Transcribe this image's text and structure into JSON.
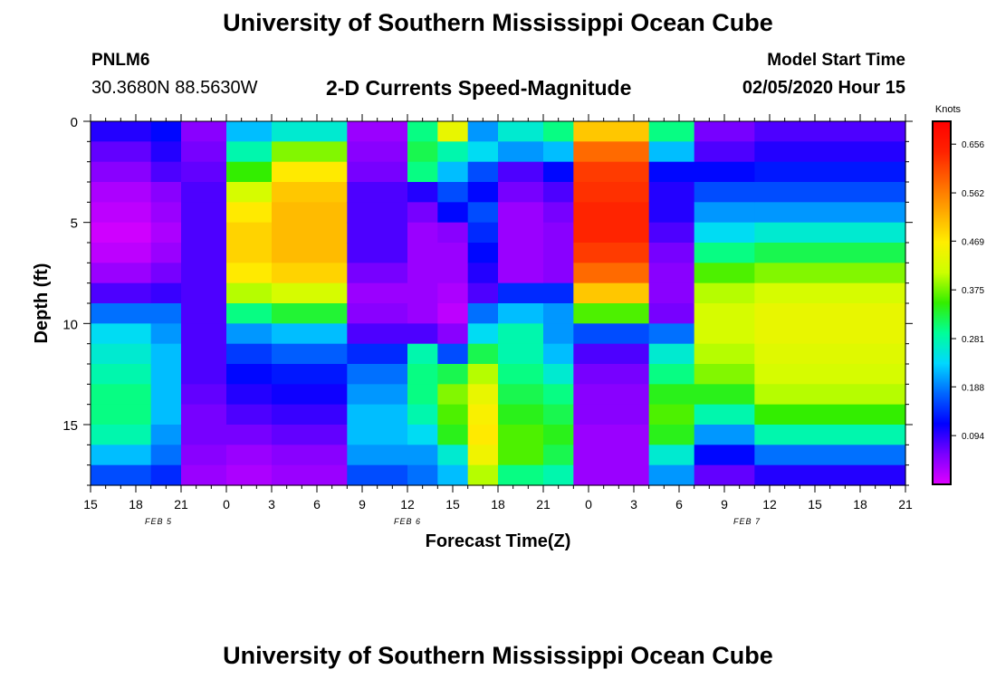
{
  "header": {
    "title": "University of Southern Mississippi Ocean Cube",
    "station": "PNLM6",
    "coordinates": "30.3680N 88.5630W",
    "subtitle": "2-D Currents Speed-Magnitude",
    "model_start_label": "Model Start Time",
    "model_start_value": "02/05/2020 Hour 15"
  },
  "footer": {
    "title": "University of Southern Mississippi Ocean Cube"
  },
  "chart_data": {
    "type": "heatmap",
    "title": "2-D Currents Speed-Magnitude",
    "xlabel": "Forecast Time(Z)",
    "ylabel": "Depth (ft)",
    "x_tick_labels": [
      "15",
      "18",
      "21",
      "0",
      "3",
      "6",
      "9",
      "12",
      "15",
      "18",
      "21",
      "0",
      "3",
      "6",
      "9",
      "12",
      "15",
      "18",
      "21"
    ],
    "x_range_hours": [
      0,
      54
    ],
    "date_labels": [
      {
        "label": "FEB 5",
        "hour": 4.5
      },
      {
        "label": "FEB 6",
        "hour": 21
      },
      {
        "label": "FEB 7",
        "hour": 43.5
      }
    ],
    "y_ticks": [
      0,
      5,
      10,
      15
    ],
    "y_range": [
      0,
      18
    ],
    "y_inverted": true,
    "colorbar": {
      "label": "Knots",
      "ticks": [
        0.656,
        0.562,
        0.469,
        0.375,
        0.281,
        0.188,
        0.094
      ],
      "range": [
        0,
        0.7
      ],
      "colors": [
        "#e000ff",
        "#7a00ff",
        "#0000ff",
        "#0066ff",
        "#00d8ff",
        "#00ff99",
        "#33ee00",
        "#ccff00",
        "#ffee00",
        "#ffaa00",
        "#ff6600",
        "#ff2200",
        "#ff0000"
      ]
    },
    "depths_ft": [
      0.5,
      1.5,
      2.5,
      3.5,
      4.5,
      5.5,
      6.5,
      7.5,
      8.5,
      9.5,
      10.5,
      11.5,
      12.5,
      13.5,
      14.5,
      15.5,
      16.5,
      17.5
    ],
    "speed_blocks": [
      {
        "t": [
          0,
          4
        ],
        "top_to_bottom": [
          0.1,
          0.07,
          0.05,
          0.03,
          0.02,
          0.01,
          0.02,
          0.04,
          0.08,
          0.18,
          0.24,
          0.26,
          0.28,
          0.3,
          0.3,
          0.28,
          0.22,
          0.16
        ]
      },
      {
        "t": [
          4,
          6
        ],
        "top_to_bottom": [
          0.12,
          0.1,
          0.08,
          0.05,
          0.04,
          0.03,
          0.04,
          0.06,
          0.09,
          0.18,
          0.2,
          0.22,
          0.22,
          0.22,
          0.22,
          0.2,
          0.18,
          0.14
        ]
      },
      {
        "t": [
          6,
          9
        ],
        "top_to_bottom": [
          0.05,
          0.06,
          0.07,
          0.08,
          0.08,
          0.08,
          0.08,
          0.08,
          0.08,
          0.08,
          0.08,
          0.08,
          0.08,
          0.07,
          0.06,
          0.06,
          0.05,
          0.04
        ]
      },
      {
        "t": [
          9,
          12
        ],
        "top_to_bottom": [
          0.22,
          0.28,
          0.35,
          0.42,
          0.47,
          0.49,
          0.49,
          0.47,
          0.4,
          0.3,
          0.2,
          0.15,
          0.12,
          0.1,
          0.08,
          0.06,
          0.04,
          0.03
        ]
      },
      {
        "t": [
          12,
          17
        ],
        "top_to_bottom": [
          0.26,
          0.38,
          0.47,
          0.5,
          0.51,
          0.51,
          0.51,
          0.49,
          0.42,
          0.33,
          0.22,
          0.17,
          0.13,
          0.11,
          0.09,
          0.07,
          0.05,
          0.04
        ]
      },
      {
        "t": [
          17,
          21
        ],
        "top_to_bottom": [
          0.04,
          0.05,
          0.06,
          0.08,
          0.08,
          0.08,
          0.08,
          0.06,
          0.04,
          0.05,
          0.08,
          0.14,
          0.18,
          0.2,
          0.22,
          0.22,
          0.2,
          0.16
        ]
      },
      {
        "t": [
          21,
          23
        ],
        "top_to_bottom": [
          0.3,
          0.32,
          0.3,
          0.1,
          0.06,
          0.04,
          0.04,
          0.04,
          0.04,
          0.04,
          0.08,
          0.28,
          0.3,
          0.3,
          0.28,
          0.24,
          0.2,
          0.18
        ]
      },
      {
        "t": [
          23,
          25
        ],
        "top_to_bottom": [
          0.44,
          0.28,
          0.22,
          0.16,
          0.12,
          0.05,
          0.04,
          0.04,
          0.03,
          0.02,
          0.05,
          0.16,
          0.32,
          0.38,
          0.36,
          0.34,
          0.26,
          0.22
        ]
      },
      {
        "t": [
          25,
          27
        ],
        "top_to_bottom": [
          0.2,
          0.24,
          0.16,
          0.12,
          0.16,
          0.14,
          0.12,
          0.1,
          0.08,
          0.18,
          0.24,
          0.32,
          0.4,
          0.44,
          0.46,
          0.47,
          0.45,
          0.4
        ]
      },
      {
        "t": [
          27,
          30
        ],
        "top_to_bottom": [
          0.26,
          0.2,
          0.08,
          0.06,
          0.04,
          0.04,
          0.04,
          0.04,
          0.14,
          0.22,
          0.28,
          0.28,
          0.3,
          0.32,
          0.34,
          0.36,
          0.36,
          0.3
        ]
      },
      {
        "t": [
          30,
          32
        ],
        "top_to_bottom": [
          0.3,
          0.22,
          0.12,
          0.08,
          0.06,
          0.05,
          0.05,
          0.05,
          0.14,
          0.2,
          0.2,
          0.22,
          0.26,
          0.3,
          0.32,
          0.34,
          0.32,
          0.28
        ]
      },
      {
        "t": [
          32,
          37
        ],
        "top_to_bottom": [
          0.5,
          0.58,
          0.62,
          0.63,
          0.64,
          0.64,
          0.62,
          0.58,
          0.5,
          0.36,
          0.16,
          0.08,
          0.06,
          0.05,
          0.05,
          0.04,
          0.04,
          0.04
        ]
      },
      {
        "t": [
          37,
          40
        ],
        "top_to_bottom": [
          0.3,
          0.22,
          0.12,
          0.1,
          0.1,
          0.08,
          0.06,
          0.05,
          0.05,
          0.06,
          0.18,
          0.26,
          0.3,
          0.34,
          0.36,
          0.34,
          0.26,
          0.2
        ]
      },
      {
        "t": [
          40,
          44
        ],
        "top_to_bottom": [
          0.06,
          0.08,
          0.12,
          0.16,
          0.2,
          0.24,
          0.3,
          0.36,
          0.4,
          0.42,
          0.42,
          0.4,
          0.38,
          0.34,
          0.28,
          0.2,
          0.12,
          0.07
        ]
      },
      {
        "t": [
          44,
          54
        ],
        "top_to_bottom": [
          0.08,
          0.1,
          0.13,
          0.16,
          0.2,
          0.26,
          0.32,
          0.38,
          0.42,
          0.44,
          0.44,
          0.43,
          0.42,
          0.4,
          0.35,
          0.28,
          0.18,
          0.1
        ]
      }
    ]
  }
}
